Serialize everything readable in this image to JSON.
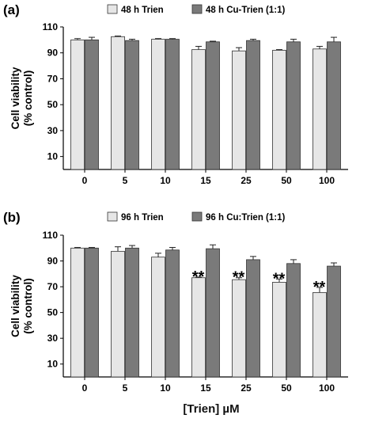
{
  "colors": {
    "light": "#e6e6e6",
    "dark": "#7a7a7a",
    "stroke": "#333333"
  },
  "xlabel": "[Trien] µM",
  "chart_data": [
    {
      "type": "bar",
      "panel_label": "(a)",
      "ylabel": [
        "Cell viability",
        "(% control)"
      ],
      "ylim": [
        0,
        110
      ],
      "yticks": [
        10,
        30,
        50,
        70,
        90,
        110
      ],
      "legend_placement": "top",
      "categories": [
        "0",
        "5",
        "10",
        "15",
        "25",
        "50",
        "100"
      ],
      "series": [
        {
          "name": "48 h Trien",
          "values": [
            100,
            102.5,
            100.5,
            92.5,
            91.5,
            92,
            93
          ],
          "errors": [
            1,
            0.5,
            0.5,
            2.5,
            2.5,
            0.5,
            2
          ]
        },
        {
          "name": "48 h Cu-Trien (1:1)",
          "values": [
            100,
            99.5,
            100.5,
            98.5,
            99.5,
            98.5,
            98.5
          ],
          "errors": [
            2,
            1,
            0.5,
            0.5,
            1,
            2,
            3.5
          ]
        }
      ],
      "annotations": []
    },
    {
      "type": "bar",
      "panel_label": "(b)",
      "ylabel": [
        "Cell viability",
        "(% control)"
      ],
      "ylim": [
        0,
        110
      ],
      "yticks": [
        10,
        30,
        50,
        70,
        90,
        110
      ],
      "legend_placement": "top",
      "categories": [
        "0",
        "5",
        "10",
        "15",
        "25",
        "50",
        "100"
      ],
      "series": [
        {
          "name": "96 h Trien",
          "values": [
            100,
            97.5,
            93,
            77,
            75.5,
            73.5,
            65.5
          ],
          "errors": [
            0.5,
            3.5,
            3,
            0.5,
            1.5,
            2.5,
            4
          ]
        },
        {
          "name": "96 h Cu:Trien (1:1)",
          "values": [
            100,
            100,
            98.5,
            99.5,
            91,
            88,
            86
          ],
          "errors": [
            0.5,
            2,
            2,
            3,
            2.5,
            3,
            2.5
          ]
        }
      ],
      "annotations": [
        {
          "category": "15",
          "text": "**"
        },
        {
          "category": "25",
          "text": "**"
        },
        {
          "category": "50",
          "text": "**"
        },
        {
          "category": "100",
          "text": "**"
        }
      ]
    }
  ]
}
